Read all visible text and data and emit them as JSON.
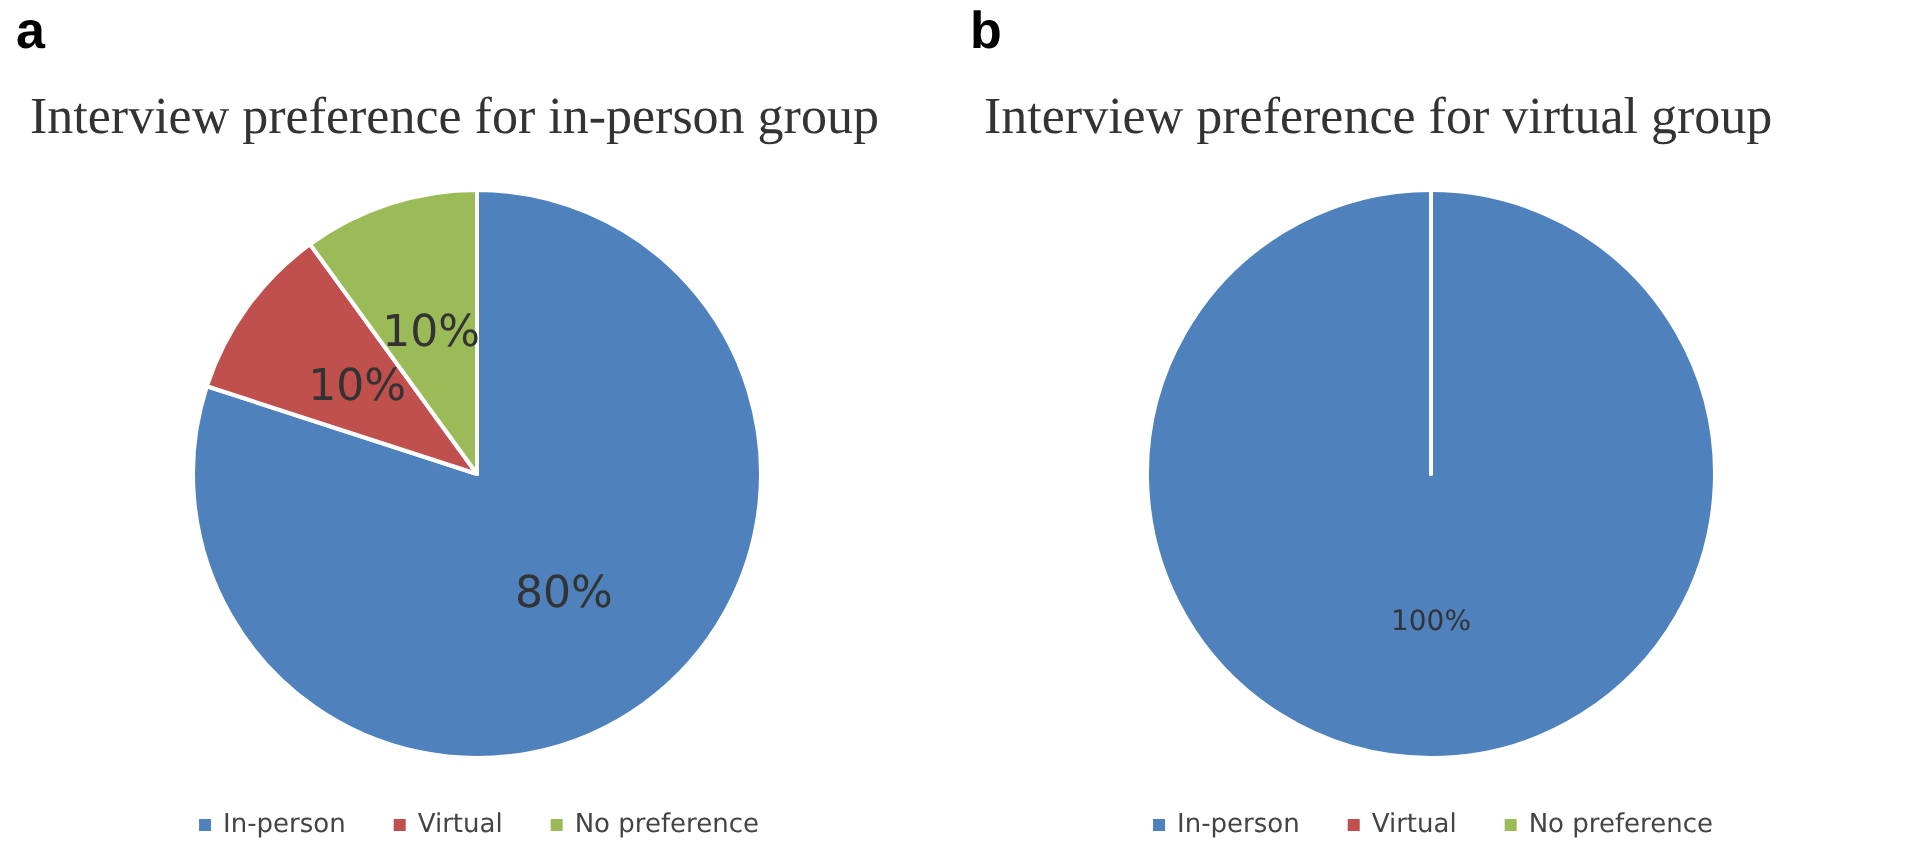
{
  "chart_data": [
    {
      "type": "pie",
      "title": "Interview preference for in-person group",
      "annotations": [
        "a"
      ],
      "categories": [
        "In-person",
        "Virtual",
        "No preference"
      ],
      "values": [
        80,
        10,
        10
      ],
      "colors": [
        "#4f81bd",
        "#c0504d",
        "#9bbb59"
      ],
      "value_labels": [
        "80%",
        "10%",
        "10%"
      ],
      "legend": "bottom"
    },
    {
      "type": "pie",
      "title": "Interview preference for virtual group",
      "annotations": [
        "b"
      ],
      "categories": [
        "In-person",
        "Virtual",
        "No preference"
      ],
      "values": [
        100,
        0,
        0
      ],
      "colors": [
        "#4f81bd",
        "#c0504d",
        "#9bbb59"
      ],
      "value_labels": [
        "100%",
        null,
        null
      ],
      "legend": "bottom"
    }
  ]
}
